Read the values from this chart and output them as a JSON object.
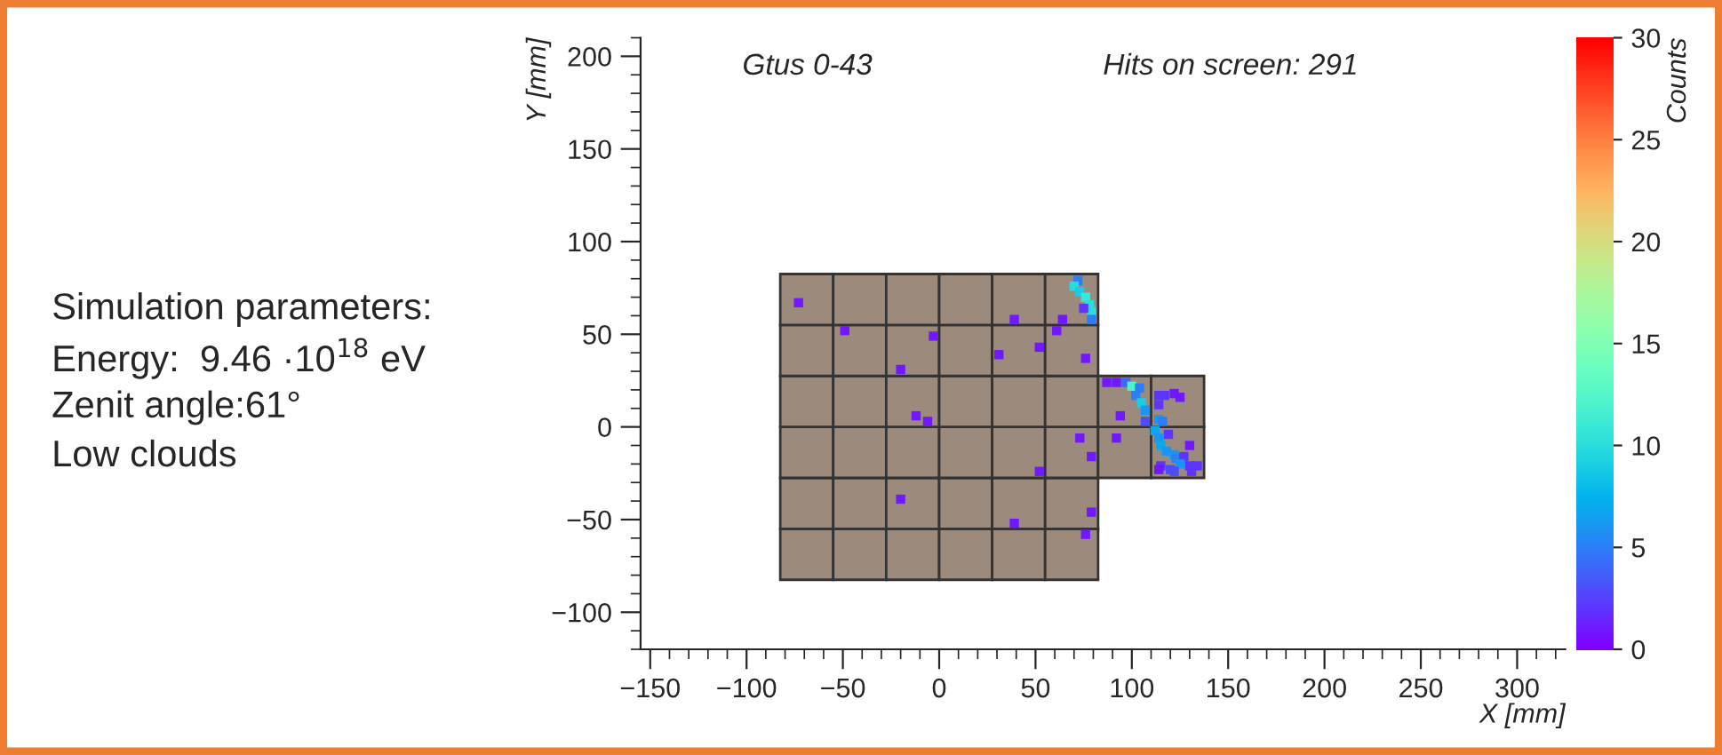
{
  "chart_data": {
    "type": "scatter",
    "xlabel": "X [mm]",
    "ylabel": "Y [mm]",
    "clabel": "Counts",
    "annotations": [
      "Gtus 0-43",
      "Hits on screen: 291",
      "Simulation parameters:",
      "Energy:  9.46 ·10$^{18}$ eV",
      "Zenit angle:61°",
      "Low clouds"
    ],
    "x": [
      -73,
      -49,
      -3,
      -20,
      39,
      64,
      31,
      52,
      61,
      76,
      -12,
      -6,
      73,
      92,
      79,
      52,
      -20,
      79,
      39,
      76,
      72,
      70,
      73,
      76,
      78,
      79,
      75,
      79,
      87,
      92,
      97,
      100,
      104,
      102,
      105,
      107,
      94,
      107,
      114,
      117,
      114,
      122,
      125,
      114,
      116,
      112,
      114,
      119,
      115,
      118,
      122,
      123,
      127,
      130,
      125,
      120,
      115,
      130,
      134,
      122,
      131,
      114
    ],
    "values": [
      67,
      52,
      49,
      31,
      58,
      58,
      39,
      43,
      52,
      37,
      6,
      3,
      -6,
      -6,
      -16,
      -24,
      -39,
      -46,
      -52,
      -58,
      79,
      76,
      73,
      70,
      66,
      62,
      64,
      58,
      24,
      24,
      24,
      22,
      21,
      17,
      13,
      9,
      6,
      3,
      17,
      17,
      12,
      18,
      16,
      4,
      3,
      -2,
      -6,
      -4,
      -10,
      -13,
      -15,
      -17,
      -16,
      -10,
      -20,
      -23,
      -21,
      -21,
      -21,
      -24,
      -24,
      -23
    ],
    "cvalues": [
      1,
      1,
      1,
      1,
      1,
      1,
      1,
      1,
      1,
      1,
      1,
      1,
      1,
      1,
      1,
      1,
      1,
      1,
      1,
      1,
      5,
      10,
      9,
      11,
      10,
      10,
      2,
      5,
      1,
      1,
      4,
      12,
      5,
      5,
      9,
      6,
      1,
      3,
      2,
      2,
      2,
      1,
      1,
      6,
      5,
      7,
      6,
      2,
      7,
      6,
      6,
      5,
      2,
      1,
      6,
      3,
      2,
      2,
      2,
      3,
      2,
      1
    ],
    "marker": "square",
    "xlim": [
      -155,
      325
    ],
    "ylim": [
      -120,
      210
    ],
    "xticks": [
      {
        "value": -150,
        "label": "−150"
      },
      {
        "value": -100,
        "label": "−100"
      },
      {
        "value": -50,
        "label": "−50"
      },
      0,
      50,
      100,
      150,
      200,
      250,
      300
    ],
    "yticks": [
      {
        "value": -100,
        "label": "−100"
      },
      {
        "value": -50,
        "label": "−50"
      },
      0,
      50,
      100,
      150,
      200
    ],
    "clim": [
      0,
      30
    ],
    "cticks": [
      0,
      5,
      10,
      15,
      20,
      25,
      30
    ]
  }
}
